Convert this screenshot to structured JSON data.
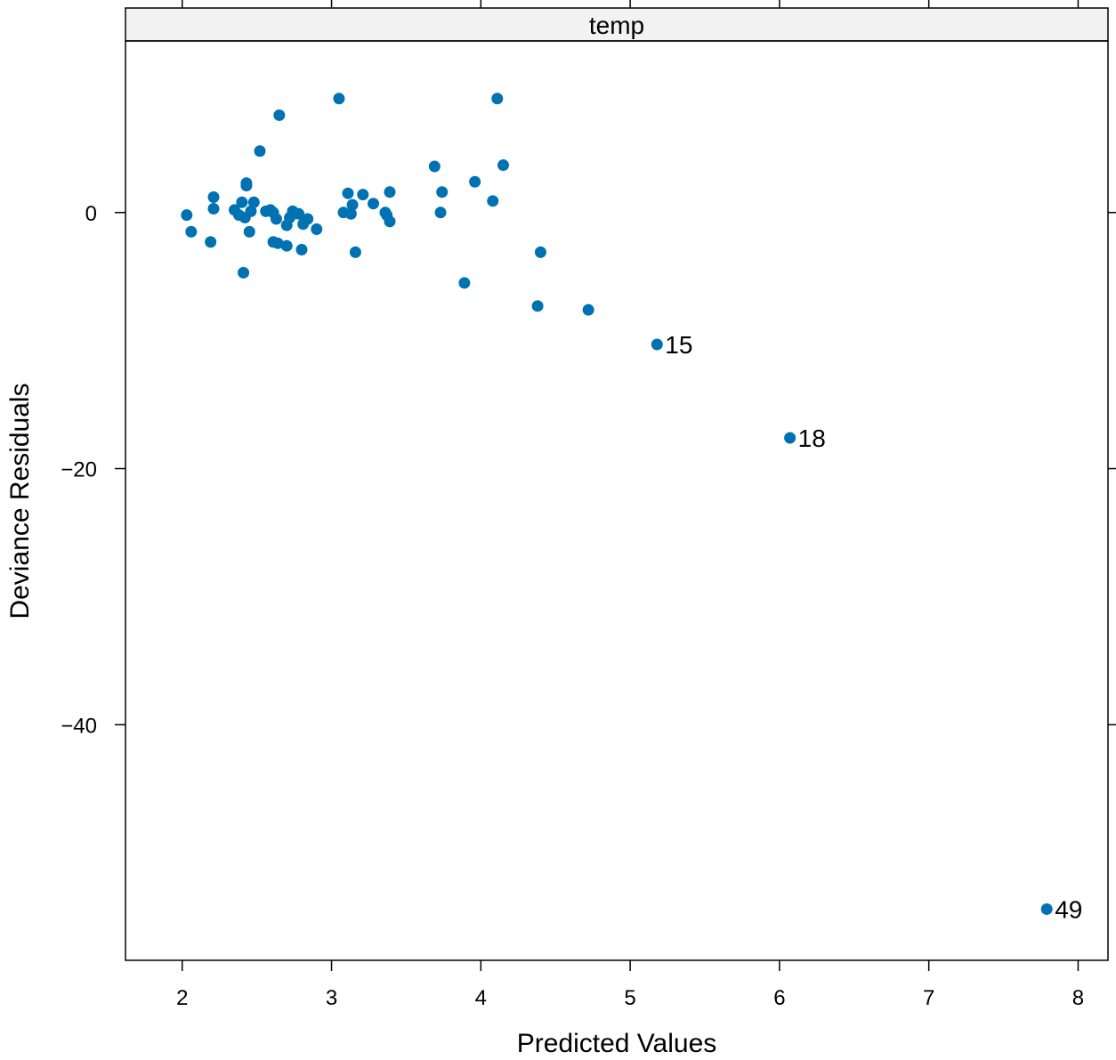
{
  "chart_data": {
    "type": "scatter",
    "panel_label": "temp",
    "xlabel": "Predicted Values",
    "ylabel": "Deviance Residuals",
    "xlim": [
      1.62,
      8.2
    ],
    "ylim": [
      -58.4,
      13.4
    ],
    "x_ticks": [
      2,
      3,
      4,
      5,
      6,
      7,
      8
    ],
    "y_ticks": [
      0,
      -20,
      -40
    ],
    "x_tick_labels": [
      "2",
      "3",
      "4",
      "5",
      "6",
      "7",
      "8"
    ],
    "y_tick_labels": [
      "0",
      "−20",
      "−40"
    ],
    "grid": false,
    "point_color": "#0072B2",
    "strip_color": "#f2f2f2",
    "points": [
      {
        "x": 2.03,
        "y": -0.2
      },
      {
        "x": 2.06,
        "y": -1.5
      },
      {
        "x": 2.19,
        "y": -2.3
      },
      {
        "x": 2.21,
        "y": 1.2
      },
      {
        "x": 2.21,
        "y": 0.3
      },
      {
        "x": 2.35,
        "y": 0.2
      },
      {
        "x": 2.38,
        "y": -0.2
      },
      {
        "x": 2.4,
        "y": 0.8
      },
      {
        "x": 2.41,
        "y": -4.7
      },
      {
        "x": 2.42,
        "y": -0.4
      },
      {
        "x": 2.43,
        "y": 2.1
      },
      {
        "x": 2.43,
        "y": 2.3
      },
      {
        "x": 2.45,
        "y": -1.5
      },
      {
        "x": 2.46,
        "y": 0.1
      },
      {
        "x": 2.48,
        "y": 0.8
      },
      {
        "x": 2.52,
        "y": 4.8
      },
      {
        "x": 2.56,
        "y": 0.1
      },
      {
        "x": 2.59,
        "y": 0.2
      },
      {
        "x": 2.61,
        "y": 0.0
      },
      {
        "x": 2.61,
        "y": -2.3
      },
      {
        "x": 2.63,
        "y": -0.5
      },
      {
        "x": 2.64,
        "y": -2.4
      },
      {
        "x": 2.65,
        "y": 7.6
      },
      {
        "x": 2.7,
        "y": -1.0
      },
      {
        "x": 2.7,
        "y": -2.6
      },
      {
        "x": 2.72,
        "y": -0.4
      },
      {
        "x": 2.74,
        "y": 0.1
      },
      {
        "x": 2.78,
        "y": -0.1
      },
      {
        "x": 2.8,
        "y": -2.9
      },
      {
        "x": 2.81,
        "y": -0.9
      },
      {
        "x": 2.84,
        "y": -0.5
      },
      {
        "x": 2.9,
        "y": -1.3
      },
      {
        "x": 3.05,
        "y": 8.9
      },
      {
        "x": 3.08,
        "y": 0.0
      },
      {
        "x": 3.11,
        "y": 1.5
      },
      {
        "x": 3.13,
        "y": -0.1
      },
      {
        "x": 3.14,
        "y": 0.6
      },
      {
        "x": 3.16,
        "y": -3.1
      },
      {
        "x": 3.21,
        "y": 1.4
      },
      {
        "x": 3.28,
        "y": 0.7
      },
      {
        "x": 3.36,
        "y": 0.0
      },
      {
        "x": 3.37,
        "y": -0.2
      },
      {
        "x": 3.39,
        "y": -0.7
      },
      {
        "x": 3.39,
        "y": 1.6
      },
      {
        "x": 3.69,
        "y": 3.6
      },
      {
        "x": 3.73,
        "y": 0.0
      },
      {
        "x": 3.74,
        "y": 1.6
      },
      {
        "x": 3.89,
        "y": -5.5
      },
      {
        "x": 3.96,
        "y": 2.4
      },
      {
        "x": 4.08,
        "y": 0.9
      },
      {
        "x": 4.11,
        "y": 8.9
      },
      {
        "x": 4.15,
        "y": 3.7
      },
      {
        "x": 4.38,
        "y": -7.3
      },
      {
        "x": 4.4,
        "y": -3.1
      },
      {
        "x": 4.72,
        "y": -7.6
      },
      {
        "x": 5.18,
        "y": -10.3,
        "label": "15"
      },
      {
        "x": 6.07,
        "y": -17.6,
        "label": "18"
      },
      {
        "x": 7.79,
        "y": -54.4,
        "label": "49"
      }
    ]
  }
}
